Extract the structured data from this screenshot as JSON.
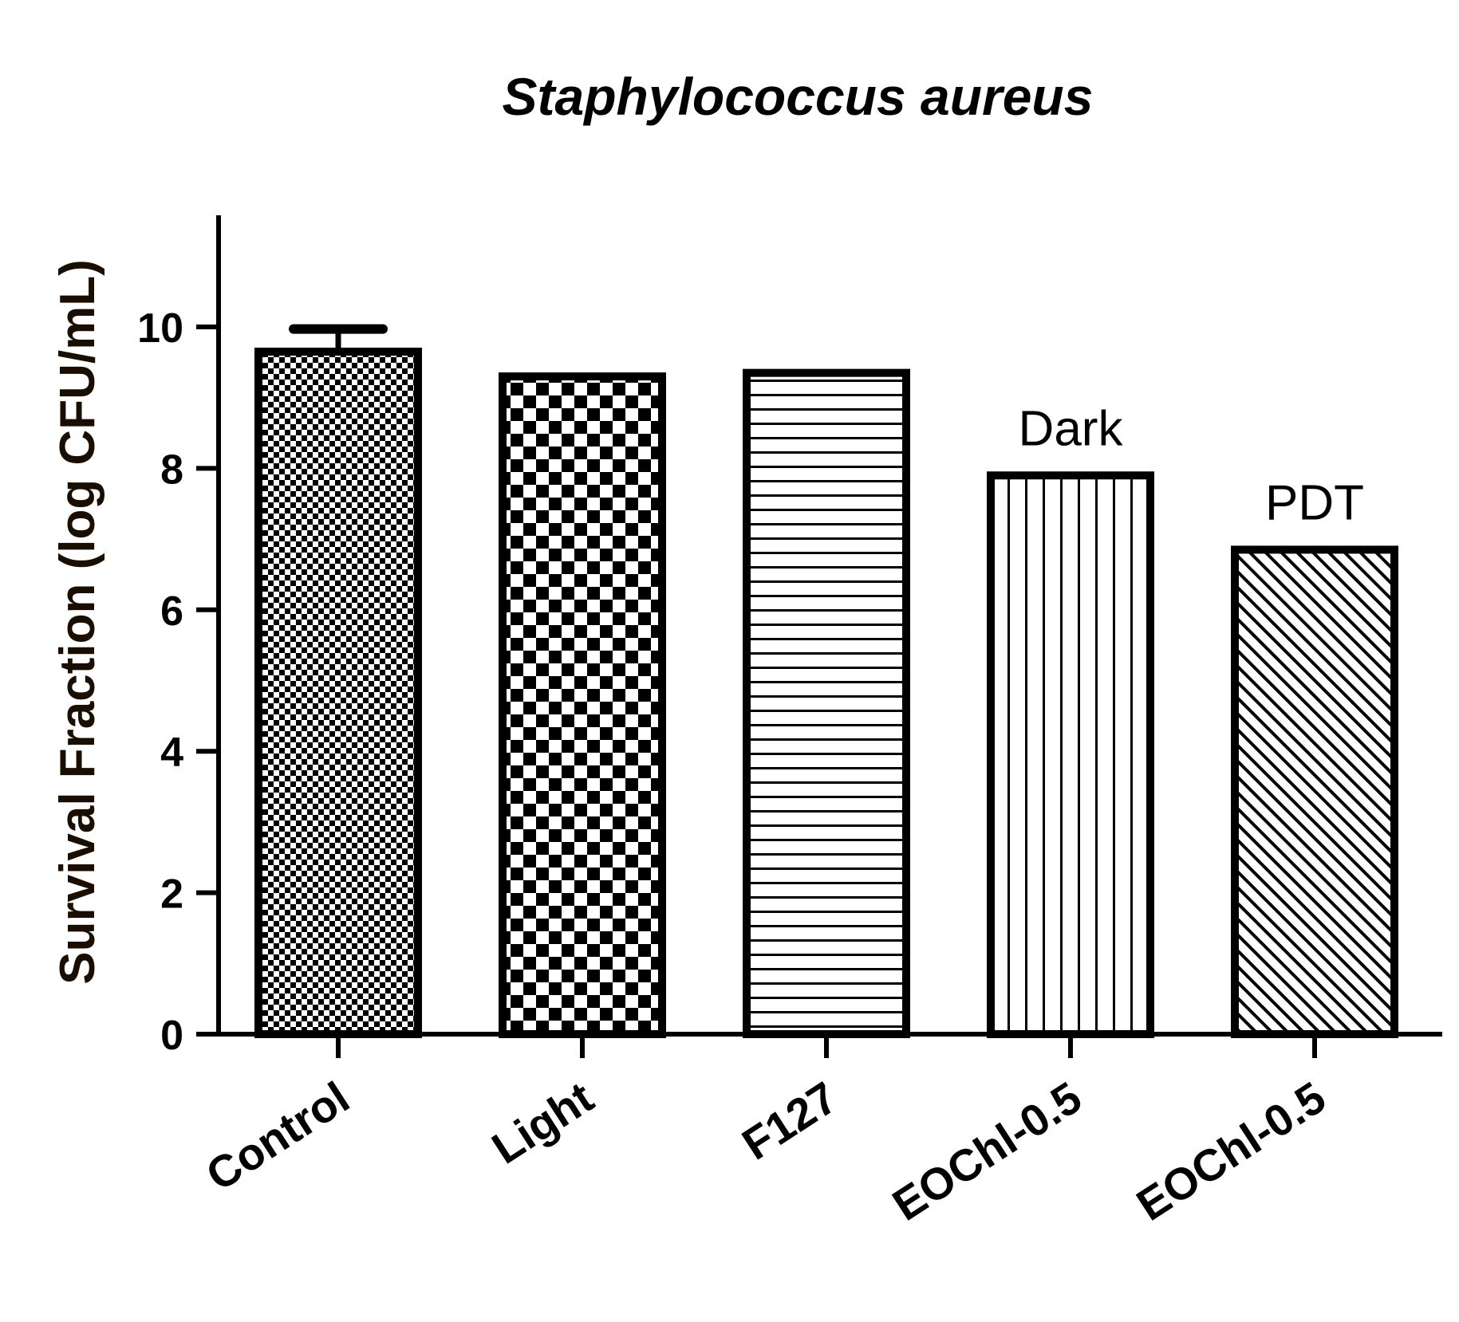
{
  "chart_data": {
    "type": "bar",
    "title": "Staphylococcus aureus",
    "xlabel": "",
    "ylabel": "Survival Fraction (log CFU/mL)",
    "ylim": [
      0,
      11.5
    ],
    "yticks": [
      0,
      2,
      4,
      6,
      8,
      10
    ],
    "ytick_labels": [
      "0",
      "2",
      "4",
      "6",
      "8",
      "10"
    ],
    "categories": [
      "Control",
      "Light",
      "F127",
      "EOChl-0.5",
      "EOChl-0.5"
    ],
    "values": [
      9.65,
      9.3,
      9.35,
      7.9,
      6.85
    ],
    "error_upper": [
      0.32,
      0.0,
      0.0,
      0.0,
      0.0
    ],
    "patterns": [
      "fine-checker",
      "coarse-checker",
      "horizontal-lines",
      "vertical-lines",
      "diagonal-hatch"
    ],
    "annotations": [
      {
        "text": "Dark",
        "category_index": 3
      },
      {
        "text": "PDT",
        "category_index": 4
      }
    ],
    "grid": false,
    "legend": "none"
  },
  "colors": {
    "ink": "#000000",
    "ylabel": "#1a0e00",
    "background": "#ffffff"
  }
}
